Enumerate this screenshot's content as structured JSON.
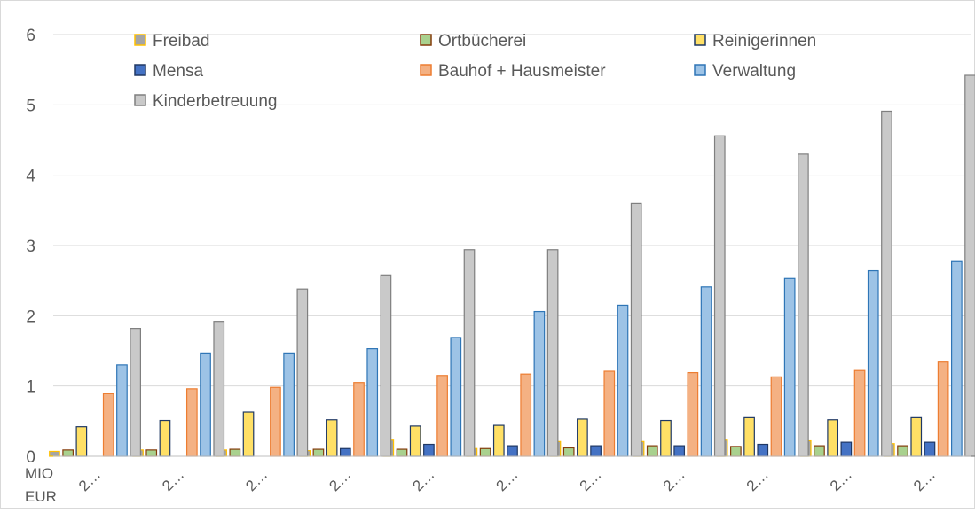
{
  "chart_data": {
    "type": "bar",
    "title": "",
    "xlabel": "",
    "ylabel": "",
    "corner_label_line1": "MIO",
    "corner_label_line2": "EUR",
    "ylim": [
      0,
      6
    ],
    "yticks": [
      "0",
      "1",
      "2",
      "3",
      "4",
      "5",
      "6"
    ],
    "grid": "horizontal",
    "legend_position": "top",
    "categories": [
      "2…",
      "2…",
      "2…",
      "2…",
      "2…",
      "2…",
      "2…",
      "2…",
      "2…",
      "2…",
      "2…"
    ],
    "series": [
      {
        "name": "Freibad",
        "color": "#A5A5A5",
        "edge": "#FFC000",
        "values": [
          0.07,
          0.09,
          0.09,
          0.08,
          0.23,
          0.11,
          0.21,
          0.21,
          0.23,
          0.22,
          0.18
        ]
      },
      {
        "name": "Ortbücherei",
        "color": "#A9D18E",
        "edge": "#843C0C",
        "values": [
          0.09,
          0.09,
          0.1,
          0.1,
          0.1,
          0.11,
          0.12,
          0.15,
          0.14,
          0.15,
          0.15
        ]
      },
      {
        "name": "Reinigerinnen",
        "color": "#FFE066",
        "edge": "#1F3864",
        "values": [
          0.42,
          0.51,
          0.63,
          0.52,
          0.43,
          0.44,
          0.53,
          0.51,
          0.55,
          0.52,
          0.55
        ]
      },
      {
        "name": "Mensa",
        "color": "#4472C4",
        "edge": "#203864",
        "values": [
          0.0,
          0.0,
          0.0,
          0.11,
          0.17,
          0.15,
          0.15,
          0.15,
          0.17,
          0.2,
          0.2
        ]
      },
      {
        "name": "Bauhof + Hausmeister",
        "color": "#F4B183",
        "edge": "#ED7D31",
        "values": [
          0.89,
          0.96,
          0.98,
          1.05,
          1.15,
          1.17,
          1.21,
          1.19,
          1.13,
          1.22,
          1.34
        ]
      },
      {
        "name": "Verwaltung",
        "color": "#9DC3E6",
        "edge": "#2E75B6",
        "values": [
          1.3,
          1.47,
          1.47,
          1.53,
          1.69,
          2.06,
          2.15,
          2.41,
          2.53,
          2.64,
          2.77
        ]
      },
      {
        "name": "Kinderbetreuung",
        "color": "#C9C9C9",
        "edge": "#7F7F7F",
        "values": [
          1.82,
          1.92,
          2.38,
          2.58,
          2.94,
          2.94,
          3.6,
          4.56,
          4.3,
          4.91,
          5.42
        ]
      }
    ]
  }
}
